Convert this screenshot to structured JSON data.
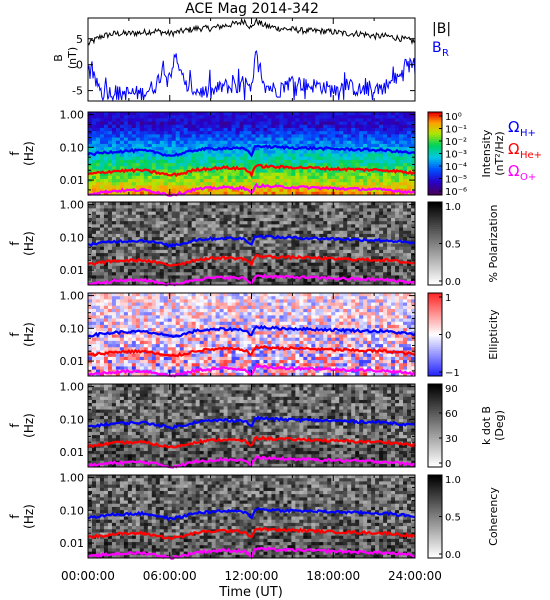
{
  "chart_data": {
    "type": "multi-panel spectrogram",
    "title": "ACE Mag 2014-342",
    "x_axis": {
      "label": "Time (UT)",
      "ticks": [
        "00:00:00",
        "06:00:00",
        "12:00:00",
        "18:00:00",
        "24:00:00"
      ],
      "range_hours": [
        0,
        24
      ]
    },
    "gyro_lines": [
      {
        "name": "ΩH+",
        "color": "#0000ff",
        "hours": [
          0,
          2,
          4,
          5,
          6,
          7,
          8,
          10,
          11.5,
          12,
          12.3,
          14,
          16,
          18,
          20,
          22,
          24
        ],
        "freq": [
          0.06,
          0.075,
          0.08,
          0.07,
          0.055,
          0.065,
          0.085,
          0.095,
          0.09,
          0.06,
          0.11,
          0.1,
          0.095,
          0.09,
          0.085,
          0.08,
          0.065
        ]
      },
      {
        "name": "ΩHe+",
        "color": "#ff0000",
        "hours": [
          0,
          2,
          4,
          5,
          6,
          7,
          8,
          10,
          11.5,
          12,
          12.3,
          14,
          16,
          18,
          20,
          22,
          24
        ],
        "freq": [
          0.015,
          0.019,
          0.02,
          0.017,
          0.014,
          0.016,
          0.021,
          0.024,
          0.022,
          0.015,
          0.027,
          0.025,
          0.024,
          0.022,
          0.021,
          0.02,
          0.016
        ]
      },
      {
        "name": "ΩO+",
        "color": "#ff00ff",
        "hours": [
          0,
          2,
          4,
          5,
          6,
          7,
          8,
          10,
          11.5,
          12,
          12.3,
          14,
          16,
          18,
          20,
          22,
          24
        ],
        "freq": [
          0.0038,
          0.0047,
          0.005,
          0.0044,
          0.0035,
          0.0041,
          0.0053,
          0.006,
          0.0056,
          0.0038,
          0.0068,
          0.0062,
          0.006,
          0.0056,
          0.0053,
          0.005,
          0.0041
        ]
      }
    ],
    "panels": [
      {
        "id": "b-field",
        "type": "line",
        "ylabel": "B",
        "yunit": "(nT)",
        "ylim": [
          -7,
          9
        ],
        "yticks": [
          "5",
          "0",
          "-5"
        ],
        "ytick_values": [
          5,
          0,
          -5
        ],
        "series": [
          {
            "name": "|B|",
            "color": "#000000",
            "hours": [
              0,
              1,
              2,
              3,
              4,
              5,
              6,
              7,
              8,
              9,
              10,
              11,
              11.5,
              12,
              12.3,
              13,
              14,
              15,
              16,
              17,
              18,
              19,
              20,
              21,
              22,
              23,
              24
            ],
            "values": [
              4,
              5.5,
              6,
              6,
              6.2,
              6.5,
              6,
              6.5,
              7,
              7,
              7.5,
              8,
              8.5,
              7,
              8.5,
              7.5,
              7,
              6.8,
              6.5,
              6.5,
              6.3,
              6,
              6,
              5.5,
              5.5,
              5,
              4.5
            ]
          },
          {
            "name": "B_R",
            "color": "#0000ff",
            "hours": [
              0,
              1,
              2,
              3,
              4,
              5,
              5.5,
              6,
              6.5,
              7,
              8,
              9,
              10,
              11,
              11.5,
              12,
              12.3,
              13,
              14,
              15,
              16,
              17,
              18,
              19,
              20,
              21,
              22,
              23,
              24
            ],
            "values": [
              -1,
              -5,
              -5.5,
              -5.5,
              -5.5,
              -4,
              0,
              -2,
              2,
              -4,
              -5,
              -5.5,
              -4,
              -5,
              -3,
              -6,
              2,
              -4,
              -5,
              -3,
              -4,
              -4,
              -5,
              -4,
              -5,
              -4.5,
              -4,
              -2,
              1
            ]
          }
        ]
      },
      {
        "id": "intensity",
        "type": "heatmap",
        "ylabel": "f",
        "yunit": "(Hz)",
        "yticks": [
          "1.00",
          "0.10",
          "0.01"
        ],
        "colorbar": {
          "label": "Intensity",
          "unit": "(nT²/Hz)",
          "palette": "rainbow",
          "ticks": [
            "10⁰",
            "10⁻¹",
            "10⁻²",
            "10⁻³",
            "10⁻⁴",
            "10⁻⁵",
            "10⁻⁶"
          ]
        },
        "overlay_legend": [
          {
            "label": "ΩH+",
            "color": "#0000ff"
          },
          {
            "label": "ΩHe+",
            "color": "#ff0000"
          },
          {
            "label": "ΩO+",
            "color": "#ff00ff"
          }
        ]
      },
      {
        "id": "polarization",
        "type": "heatmap",
        "ylabel": "f",
        "yunit": "(Hz)",
        "yticks": [
          "1.00",
          "0.10",
          "0.01"
        ],
        "colorbar": {
          "label": "% Polarization",
          "unit": "",
          "palette": "gray",
          "ticks": [
            "1.0",
            "0.5",
            "0.0"
          ]
        }
      },
      {
        "id": "ellipticity",
        "type": "heatmap",
        "ylabel": "f",
        "yunit": "(Hz)",
        "yticks": [
          "1.00",
          "0.10",
          "0.01"
        ],
        "colorbar": {
          "label": "Ellipticity",
          "unit": "",
          "palette": "bwr",
          "ticks": [
            "1",
            "0",
            "−1"
          ]
        }
      },
      {
        "id": "kdotb",
        "type": "heatmap",
        "ylabel": "f",
        "yunit": "(Hz)",
        "yticks": [
          "1.00",
          "0.10",
          "0.01"
        ],
        "colorbar": {
          "label": "k dot B",
          "unit": "(Deg)",
          "palette": "gray",
          "ticks": [
            "90",
            "60",
            "30",
            "0"
          ]
        }
      },
      {
        "id": "coherency",
        "type": "heatmap",
        "ylabel": "f",
        "yunit": "(Hz)",
        "yticks": [
          "1.00",
          "0.10",
          "0.01"
        ],
        "colorbar": {
          "label": "Coherency",
          "unit": "",
          "palette": "gray",
          "ticks": [
            "1.0",
            "0.5",
            "0.0"
          ]
        }
      }
    ]
  }
}
